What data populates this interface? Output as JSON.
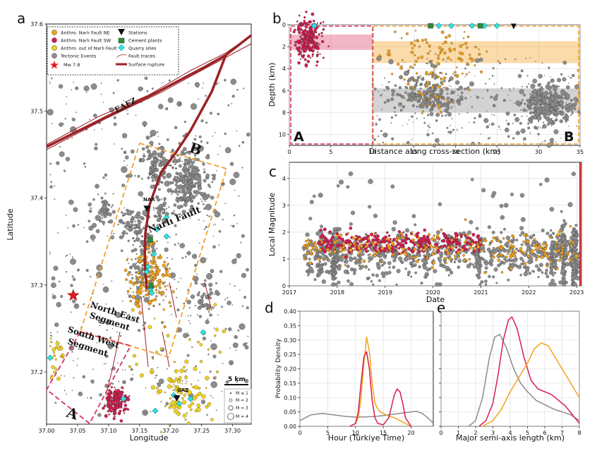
{
  "panel_labels": [
    "a",
    "b",
    "c",
    "d",
    "e"
  ],
  "colors": {
    "ne": "#f5a31a",
    "sw": "#d81b4f",
    "out": "#f2d21b",
    "tect": "#8c8c8c",
    "quarry": "#35e0e0",
    "cement": "#2e8b3a",
    "fault": "#9b2226",
    "star": "#e31a1c",
    "box_ne": "#f0a030",
    "box_sw": "#d63163"
  },
  "chart_data": [
    {
      "type": "scatter",
      "panel": "a",
      "xlabel": "Longitude",
      "ylabel": "Latitude",
      "xlim": [
        37.0,
        37.33
      ],
      "ylim": [
        37.14,
        37.6
      ],
      "xticks": [
        "37.00",
        "37.05",
        "37.10",
        "37.15",
        "37.20",
        "37.25",
        "37.30"
      ],
      "yticks": [
        "37.2",
        "37.3",
        "37.4",
        "37.5",
        "37.6"
      ],
      "legend": [
        {
          "label": "Anthro. Narlı Fault NE",
          "marker": "circle",
          "color": "#f5a31a"
        },
        {
          "label": "Anthro. Narlı Fault SW",
          "marker": "circle",
          "color": "#d81b4f"
        },
        {
          "label": "Anthro. out of Narlı Fault",
          "marker": "circle",
          "color": "#f2d21b"
        },
        {
          "label": "Tectonic Events",
          "marker": "circle",
          "color": "#8c8c8c"
        },
        {
          "label": "Mw 7.8",
          "marker": "star",
          "color": "#e31a1c"
        },
        {
          "label": "Stations",
          "marker": "triangle",
          "color": "#111111"
        },
        {
          "label": "Cement plants",
          "marker": "square",
          "color": "#2e8b3a"
        },
        {
          "label": "Quarry sites",
          "marker": "diamond",
          "color": "#35e0e0"
        },
        {
          "label": "Fault traces",
          "marker": "thin-line",
          "color": "#9b2226"
        },
        {
          "label": "Surface rupture",
          "marker": "thick-line",
          "color": "#9b2226"
        }
      ],
      "map_labels": {
        "eafz": "EAFZ",
        "narli": "Narlı Fault",
        "ne_seg": "North East Segment",
        "sw_seg": "South West Segment",
        "a": "A",
        "b": "B",
        "station_nar": "NAR",
        "station_gaz": "GAZ",
        "scalebar": "5 km"
      },
      "size_legend": [
        "M ≤ 1",
        "M = 2",
        "M = 3",
        "M = 4"
      ],
      "mainshock": {
        "lon": 37.043,
        "lat": 37.288
      },
      "stations": [
        {
          "name": "NAR",
          "lon": 37.162,
          "lat": 37.388
        },
        {
          "name": "GAZ",
          "lon": 37.21,
          "lat": 37.17
        }
      ]
    },
    {
      "type": "scatter",
      "panel": "b",
      "xlabel": "Distance along cross-section (km)",
      "ylabel": "Depth (km)",
      "xlim": [
        0,
        35
      ],
      "ylim": [
        0,
        11
      ],
      "xticks": [
        "0",
        "5",
        "10",
        "15",
        "20",
        "25",
        "30",
        "35"
      ],
      "yticks": [
        "0",
        "2",
        "4",
        "6",
        "8",
        "10"
      ],
      "bands": [
        {
          "x0": 0,
          "x1": 10,
          "d0": 0.9,
          "d1": 2.3,
          "color": "#e06080"
        },
        {
          "x0": 10,
          "x1": 35,
          "d0": 1.5,
          "d1": 3.5,
          "color": "#f5b040"
        },
        {
          "x0": 10,
          "x1": 35,
          "d0": 5.8,
          "d1": 8.0,
          "color": "#9e9e9e"
        }
      ],
      "labels": {
        "a": "A",
        "b": "B"
      }
    },
    {
      "type": "scatter",
      "panel": "c",
      "xlabel": "Date",
      "ylabel": "Local Magnitude",
      "xlim": [
        2017,
        2023.1
      ],
      "ylim": [
        0,
        4.6
      ],
      "xticks": [
        "2017",
        "2018",
        "2019",
        "2020",
        "2021",
        "2022",
        "2023"
      ],
      "yticks": [
        "0",
        "1",
        "2",
        "3",
        "4"
      ]
    },
    {
      "type": "line",
      "panel": "d",
      "xlabel": "Hour (Türkiye Time)",
      "ylabel": "Probability Density",
      "xlim": [
        0,
        24
      ],
      "ylim": [
        0,
        0.4
      ],
      "xticks": [
        "0",
        "5",
        "10",
        "15",
        "20"
      ],
      "yticks": [
        "0.00",
        "0.05",
        "0.10",
        "0.15",
        "0.20",
        "0.25",
        "0.30",
        "0.35",
        "0.40"
      ],
      "series": [
        {
          "color": "#8c8c8c",
          "x": [
            0,
            2,
            4,
            6,
            8,
            10,
            12,
            14,
            16,
            18,
            20,
            21,
            22,
            23,
            24
          ],
          "y": [
            0.02,
            0.04,
            0.045,
            0.04,
            0.035,
            0.032,
            0.033,
            0.035,
            0.04,
            0.045,
            0.05,
            0.052,
            0.045,
            0.03,
            0.01
          ]
        },
        {
          "color": "#f5a31a",
          "x": [
            9,
            10,
            10.5,
            11,
            11.5,
            12,
            12.5,
            13,
            13.5,
            14,
            14.5,
            15,
            16,
            17,
            18,
            19,
            20
          ],
          "y": [
            0,
            0.01,
            0.03,
            0.1,
            0.22,
            0.31,
            0.26,
            0.15,
            0.08,
            0.06,
            0.05,
            0.045,
            0.035,
            0.03,
            0.02,
            0.01,
            0
          ]
        },
        {
          "color": "#d81b4f",
          "x": [
            9,
            10,
            10.5,
            11,
            11.5,
            12,
            12.5,
            13,
            13.5,
            14,
            15,
            16,
            16.5,
            17,
            17.5,
            18,
            18.5,
            19,
            20
          ],
          "y": [
            0,
            0.01,
            0.05,
            0.15,
            0.24,
            0.26,
            0.2,
            0.09,
            0.03,
            0.01,
            0.005,
            0.03,
            0.07,
            0.11,
            0.13,
            0.12,
            0.08,
            0.03,
            0
          ]
        }
      ]
    },
    {
      "type": "line",
      "panel": "e",
      "xlabel": "Major semi-axis length (km)",
      "ylabel": "",
      "xlim": [
        0,
        8
      ],
      "ylim": [
        0,
        0.4
      ],
      "xticks": [
        "0",
        "1",
        "2",
        "3",
        "4",
        "5",
        "6",
        "7",
        "8"
      ],
      "series": [
        {
          "color": "#8c8c8c",
          "x": [
            1.6,
            2,
            2.4,
            2.8,
            3.1,
            3.4,
            3.8,
            4.2,
            4.6,
            5,
            5.5,
            6,
            6.5,
            7,
            7.5,
            8
          ],
          "y": [
            0,
            0.02,
            0.1,
            0.24,
            0.31,
            0.32,
            0.27,
            0.2,
            0.15,
            0.12,
            0.09,
            0.075,
            0.06,
            0.05,
            0.04,
            0.02
          ]
        },
        {
          "color": "#d81b4f",
          "x": [
            2.2,
            2.6,
            3,
            3.3,
            3.6,
            3.9,
            4.1,
            4.4,
            4.8,
            5.2,
            5.6,
            6,
            6.4,
            6.8,
            7.2,
            7.6,
            8
          ],
          "y": [
            0,
            0.02,
            0.08,
            0.18,
            0.3,
            0.37,
            0.38,
            0.34,
            0.24,
            0.16,
            0.13,
            0.12,
            0.11,
            0.09,
            0.07,
            0.04,
            0.01
          ]
        },
        {
          "color": "#f5a31a",
          "x": [
            2.4,
            3,
            3.5,
            4,
            4.5,
            5,
            5.4,
            5.8,
            6.2,
            6.6,
            7,
            7.4,
            7.8,
            8
          ],
          "y": [
            0,
            0.02,
            0.06,
            0.12,
            0.17,
            0.22,
            0.27,
            0.29,
            0.28,
            0.24,
            0.2,
            0.16,
            0.12,
            0.1
          ]
        }
      ]
    }
  ]
}
